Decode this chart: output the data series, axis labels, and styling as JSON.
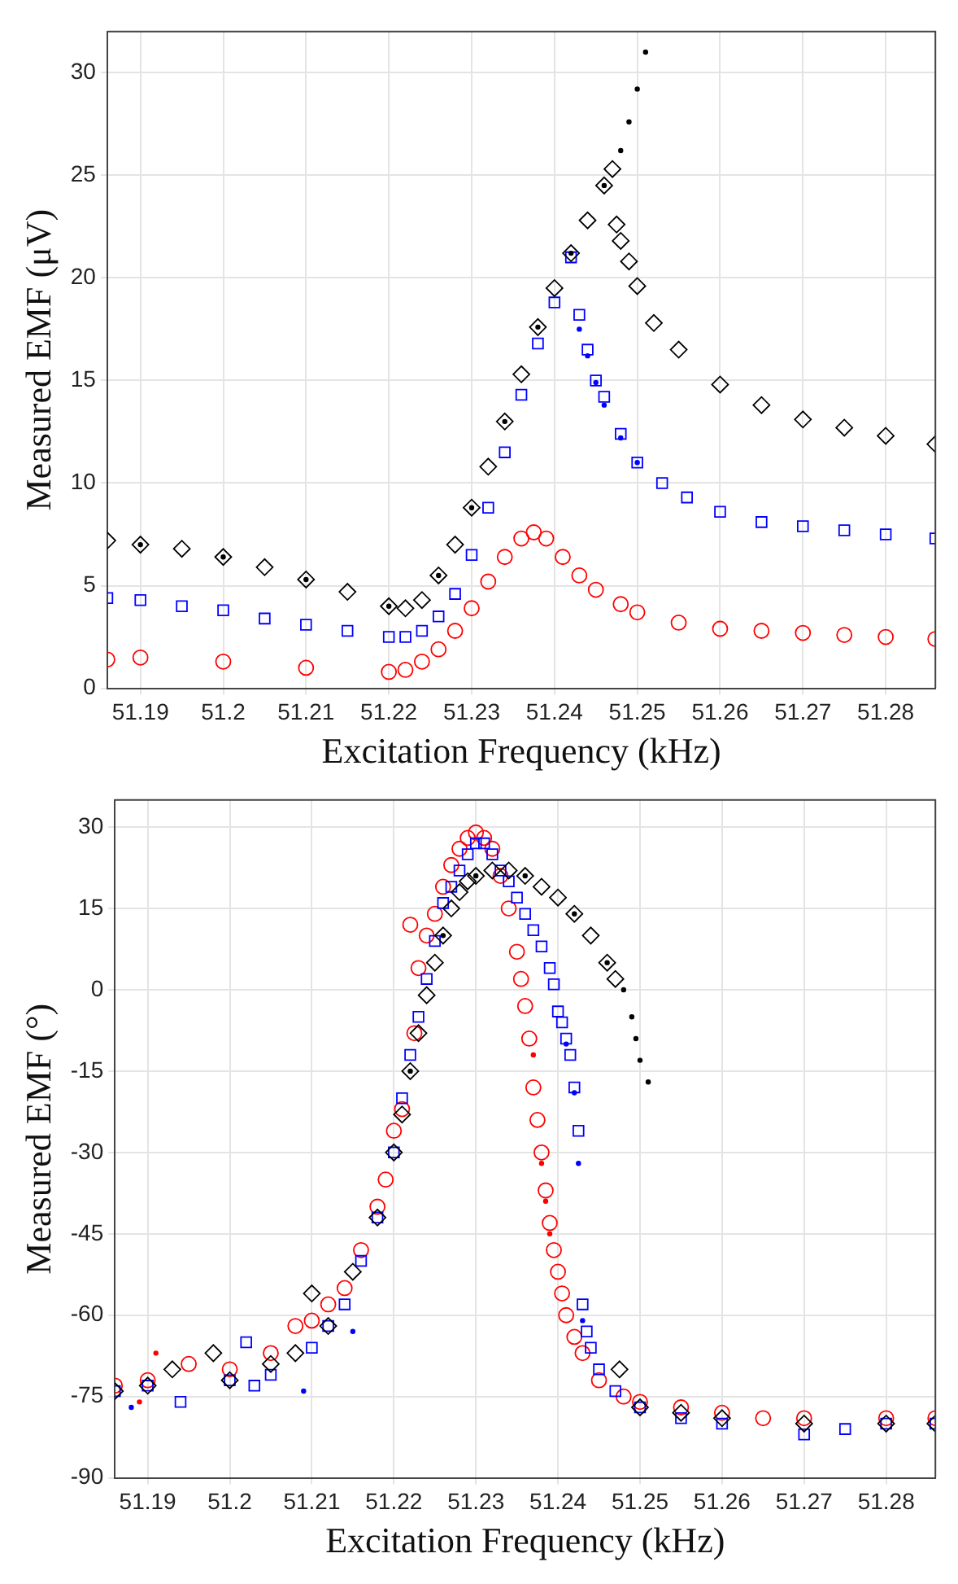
{
  "chart_data": [
    {
      "type": "scatter",
      "xlabel": "Excitation Frequency (kHz)",
      "ylabel": "Measured EMF (μV)",
      "xlim": [
        51.186,
        51.286
      ],
      "xticks": [
        51.19,
        51.2,
        51.21,
        51.22,
        51.23,
        51.24,
        51.25,
        51.26,
        51.27,
        51.28
      ],
      "ylim": [
        0,
        32
      ],
      "yticks": [
        0,
        5,
        10,
        15,
        20,
        25,
        30
      ],
      "grid": true,
      "legend": false,
      "series": [
        {
          "color": "#000000",
          "marker": "diamond",
          "x": [
            51.186,
            51.19,
            51.195,
            51.2,
            51.205,
            51.21,
            51.215,
            51.22,
            51.222,
            51.224,
            51.226,
            51.228,
            51.23,
            51.232,
            51.234,
            51.236,
            51.238,
            51.24,
            51.242,
            51.244,
            51.246,
            51.247,
            51.2475,
            51.248,
            51.249,
            51.25,
            51.252,
            51.255,
            51.26,
            51.265,
            51.27,
            51.275,
            51.28,
            51.286
          ],
          "values": [
            7.2,
            7.0,
            6.8,
            6.4,
            5.9,
            5.3,
            4.7,
            4.0,
            3.9,
            4.3,
            5.5,
            7.0,
            8.8,
            10.8,
            13.0,
            15.3,
            17.6,
            19.5,
            21.2,
            22.8,
            24.5,
            25.3,
            22.6,
            21.8,
            20.8,
            19.6,
            17.8,
            16.5,
            14.8,
            13.8,
            13.1,
            12.7,
            12.3,
            11.9
          ]
        },
        {
          "color": "#000000",
          "x": [
            51.19,
            51.2,
            51.21,
            51.22,
            51.226,
            51.23,
            51.234,
            51.238,
            51.242,
            51.246,
            51.248,
            51.249,
            51.25,
            51.251
          ],
          "values": [
            7.0,
            6.4,
            5.3,
            4.0,
            5.5,
            8.8,
            13.0,
            17.6,
            21.2,
            24.5,
            26.2,
            27.6,
            29.2,
            31.0
          ]
        },
        {
          "color": "#0000ff",
          "marker": "square",
          "x": [
            51.186,
            51.19,
            51.195,
            51.2,
            51.205,
            51.21,
            51.215,
            51.22,
            51.222,
            51.224,
            51.226,
            51.228,
            51.23,
            51.232,
            51.234,
            51.236,
            51.238,
            51.24,
            51.242,
            51.243,
            51.244,
            51.245,
            51.246,
            51.248,
            51.25,
            51.253,
            51.256,
            51.26,
            51.265,
            51.27,
            51.275,
            51.28,
            51.286
          ],
          "values": [
            4.4,
            4.3,
            4.0,
            3.8,
            3.4,
            3.1,
            2.8,
            2.5,
            2.5,
            2.8,
            3.5,
            4.6,
            6.5,
            8.8,
            11.5,
            14.3,
            16.8,
            18.8,
            21.0,
            18.2,
            16.5,
            15.0,
            14.2,
            12.4,
            11.0,
            10.0,
            9.3,
            8.6,
            8.1,
            7.9,
            7.7,
            7.5,
            7.3
          ]
        },
        {
          "color": "#0000ff",
          "x": [
            51.243,
            51.244,
            51.245,
            51.246,
            51.248,
            51.25
          ],
          "values": [
            17.5,
            16.2,
            14.9,
            13.8,
            12.2,
            11.0
          ]
        },
        {
          "color": "#ff0000",
          "marker": "circle",
          "x": [
            51.186,
            51.19,
            51.2,
            51.21,
            51.22,
            51.222,
            51.224,
            51.226,
            51.228,
            51.23,
            51.232,
            51.234,
            51.236,
            51.2375,
            51.239,
            51.241,
            51.243,
            51.245,
            51.248,
            51.25,
            51.255,
            51.26,
            51.265,
            51.27,
            51.275,
            51.28,
            51.286
          ],
          "values": [
            1.4,
            1.5,
            1.3,
            1.0,
            0.8,
            0.9,
            1.3,
            1.9,
            2.8,
            3.9,
            5.2,
            6.4,
            7.3,
            7.6,
            7.3,
            6.4,
            5.5,
            4.8,
            4.1,
            3.7,
            3.2,
            2.9,
            2.8,
            2.7,
            2.6,
            2.5,
            2.4
          ]
        }
      ]
    },
    {
      "type": "scatter",
      "xlabel": "Excitation Frequency (kHz)",
      "ylabel": "Measured EMF (°)",
      "xlim": [
        51.186,
        51.286
      ],
      "xticks": [
        51.19,
        51.2,
        51.21,
        51.22,
        51.23,
        51.24,
        51.25,
        51.26,
        51.27,
        51.28
      ],
      "ylim": [
        -90,
        35
      ],
      "yticks": [
        -90,
        -75,
        -60,
        -45,
        -30,
        -15,
        0,
        15,
        30
      ],
      "grid": true,
      "legend": false,
      "series": [
        {
          "color": "#000000",
          "marker": "diamond",
          "x": [
            51.186,
            51.19,
            51.193,
            51.198,
            51.2,
            51.205,
            51.208,
            51.21,
            51.212,
            51.215,
            51.218,
            51.22,
            51.221,
            51.222,
            51.223,
            51.224,
            51.225,
            51.226,
            51.227,
            51.228,
            51.229,
            51.23,
            51.232,
            51.234,
            51.236,
            51.238,
            51.24,
            51.242,
            51.244,
            51.246,
            51.247,
            51.2475,
            51.25,
            51.255,
            51.26,
            51.27,
            51.28,
            51.286
          ],
          "values": [
            -74,
            -73,
            -70,
            -67,
            -72,
            -69,
            -67,
            -56,
            -62,
            -52,
            -42,
            -30,
            -23,
            -15,
            -8,
            -1,
            5,
            10,
            15,
            18,
            20,
            21,
            22,
            22,
            21,
            19,
            17,
            14,
            10,
            5,
            2,
            -70,
            -77,
            -78,
            -79,
            -80,
            -80,
            -80
          ]
        },
        {
          "color": "#000000",
          "x": [
            51.222,
            51.226,
            51.23,
            51.236,
            51.242,
            51.246,
            51.248,
            51.249,
            51.2495,
            51.25,
            51.251
          ],
          "values": [
            -15,
            10,
            21,
            21,
            14,
            5,
            0,
            -5,
            -9,
            -13,
            -17
          ]
        },
        {
          "color": "#0000ff",
          "marker": "square",
          "x": [
            51.186,
            51.19,
            51.194,
            51.2,
            51.202,
            51.203,
            51.205,
            51.21,
            51.212,
            51.214,
            51.216,
            51.218,
            51.22,
            51.221,
            51.222,
            51.223,
            51.224,
            51.225,
            51.226,
            51.227,
            51.228,
            51.229,
            51.23,
            51.231,
            51.232,
            51.233,
            51.234,
            51.235,
            51.236,
            51.237,
            51.238,
            51.239,
            51.2395,
            51.24,
            51.2405,
            51.241,
            51.2415,
            51.242,
            51.2425,
            51.243,
            51.2435,
            51.244,
            51.245,
            51.247,
            51.25,
            51.255,
            51.26,
            51.27,
            51.275,
            51.28,
            51.286
          ],
          "values": [
            -74,
            -73,
            -76,
            -72,
            -65,
            -73,
            -71,
            -66,
            -62,
            -58,
            -50,
            -42,
            -30,
            -20,
            -12,
            -5,
            2,
            9,
            16,
            19,
            22,
            25,
            27,
            27,
            25,
            22,
            20,
            17,
            14,
            11,
            8,
            4,
            1,
            -4,
            -6,
            -9,
            -12,
            -18,
            -26,
            -58,
            -63,
            -66,
            -70,
            -74,
            -77,
            -79,
            -80,
            -82,
            -81,
            -80,
            -80
          ]
        },
        {
          "color": "#0000ff",
          "x": [
            51.188,
            51.209,
            51.215,
            51.241,
            51.242,
            51.2425,
            51.243
          ],
          "values": [
            -77,
            -74,
            -63,
            -10,
            -19,
            -32,
            -61
          ]
        },
        {
          "color": "#ff0000",
          "marker": "circle",
          "x": [
            51.186,
            51.19,
            51.195,
            51.2,
            51.205,
            51.208,
            51.21,
            51.212,
            51.214,
            51.216,
            51.218,
            51.219,
            51.22,
            51.221,
            51.222,
            51.2225,
            51.223,
            51.224,
            51.225,
            51.226,
            51.227,
            51.228,
            51.229,
            51.23,
            51.231,
            51.232,
            51.233,
            51.234,
            51.235,
            51.2355,
            51.236,
            51.2365,
            51.237,
            51.2375,
            51.238,
            51.2385,
            51.239,
            51.2395,
            51.24,
            51.2405,
            51.241,
            51.242,
            51.243,
            51.245,
            51.248,
            51.25,
            51.255,
            51.26,
            51.265,
            51.27,
            51.28,
            51.286
          ],
          "values": [
            -73,
            -72,
            -69,
            -70,
            -67,
            -62,
            -61,
            -58,
            -55,
            -48,
            -40,
            -35,
            -26,
            -22,
            12,
            -8,
            4,
            10,
            14,
            19,
            23,
            26,
            28,
            29,
            28,
            26,
            21,
            15,
            7,
            2,
            -3,
            -9,
            -18,
            -24,
            -30,
            -37,
            -43,
            -48,
            -52,
            -56,
            -60,
            -64,
            -67,
            -72,
            -75,
            -76,
            -77,
            -78,
            -79,
            -79,
            -79,
            -79
          ]
        },
        {
          "color": "#ff0000",
          "x": [
            51.189,
            51.191,
            51.237,
            51.238,
            51.2385,
            51.239
          ],
          "values": [
            -76,
            -67,
            -12,
            -32,
            -39,
            -45
          ]
        }
      ]
    }
  ]
}
